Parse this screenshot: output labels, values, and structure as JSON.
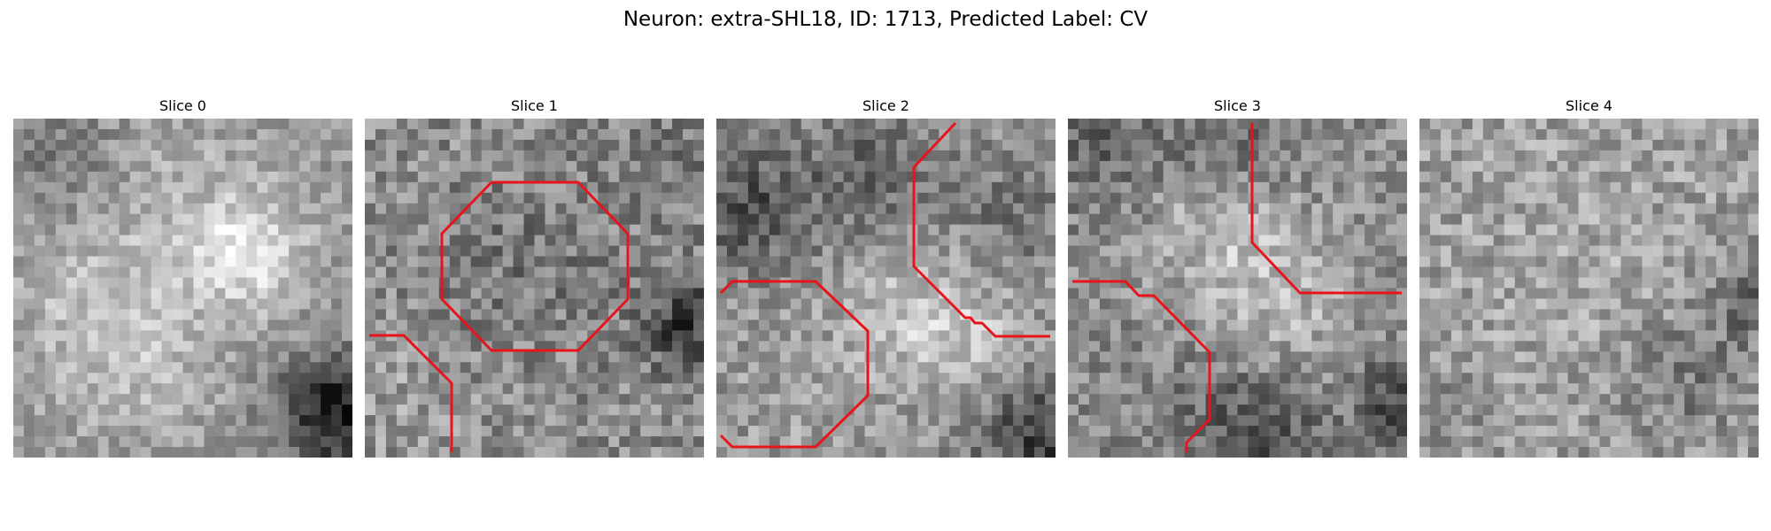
{
  "figure": {
    "title": "Neuron: extra-SHL18, ID: 1713, Predicted Label: CV"
  },
  "slices": [
    {
      "title": "Slice 0",
      "has_contour": false
    },
    {
      "title": "Slice 1",
      "has_contour": true
    },
    {
      "title": "Slice 2",
      "has_contour": true
    },
    {
      "title": "Slice 3",
      "has_contour": true
    },
    {
      "title": "Slice 4",
      "has_contour": false
    }
  ],
  "colors": {
    "contour": "#e8141b",
    "background": "#ffffff",
    "text": "#000000",
    "colormap": "grayscale"
  }
}
